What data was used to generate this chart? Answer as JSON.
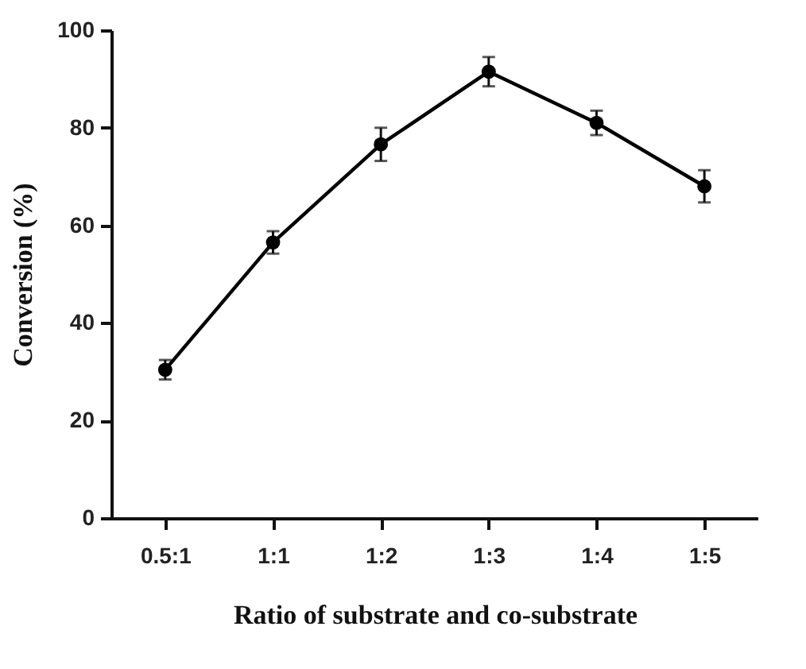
{
  "chart_data": {
    "type": "line",
    "xlabel": "Ratio of substrate and co-substrate",
    "ylabel": "Conversion (%)",
    "categories": [
      "0.5:1",
      "1:1",
      "1:2",
      "1:3",
      "1:4",
      "1:5"
    ],
    "series": [
      {
        "color": "#000000",
        "values": [
          30.4,
          56.5,
          76.6,
          91.5,
          81,
          68
        ],
        "errors": [
          2,
          2.3,
          3.4,
          3,
          2.5,
          3.3
        ]
      }
    ],
    "ylim": [
      0,
      100
    ],
    "yticks": [
      0,
      20,
      40,
      60,
      80,
      100
    ],
    "grid": false,
    "marker": "circle",
    "line_style": "solid"
  }
}
